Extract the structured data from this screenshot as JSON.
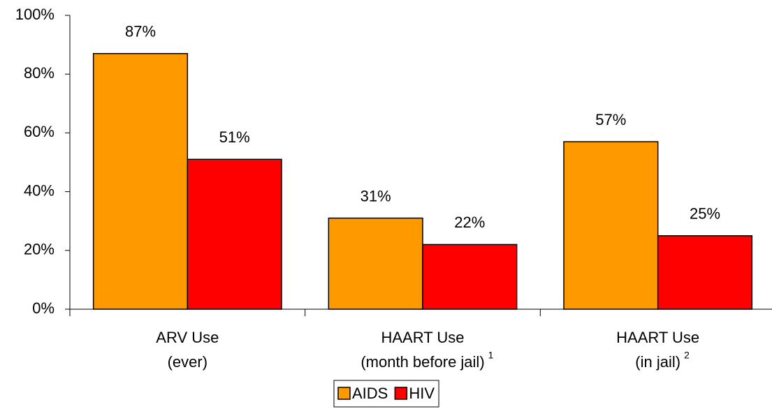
{
  "chart_data": {
    "type": "bar",
    "categories": [
      {
        "lines": [
          "ARV Use",
          "(ever)"
        ]
      },
      {
        "lines": [
          "HAART Use",
          "(month before jail)"
        ],
        "note": "1"
      },
      {
        "lines": [
          "HAART Use",
          "(in jail)"
        ],
        "note": "2"
      }
    ],
    "series": [
      {
        "name": "AIDS",
        "color": "#ff9900",
        "values": [
          87,
          31,
          57
        ],
        "value_labels": [
          "87%",
          "31%",
          "57%"
        ]
      },
      {
        "name": "HIV",
        "color": "#ff0000",
        "values": [
          51,
          22,
          25
        ],
        "value_labels": [
          "51%",
          "22%",
          "25%"
        ]
      }
    ],
    "ylim": [
      0,
      100
    ],
    "yticks": [
      {
        "value": 0,
        "label": "0%"
      },
      {
        "value": 20,
        "label": "20%"
      },
      {
        "value": 40,
        "label": "40%"
      },
      {
        "value": 60,
        "label": "60%"
      },
      {
        "value": 80,
        "label": "80%"
      },
      {
        "value": 100,
        "label": "100%"
      }
    ],
    "legend": "bottom"
  }
}
